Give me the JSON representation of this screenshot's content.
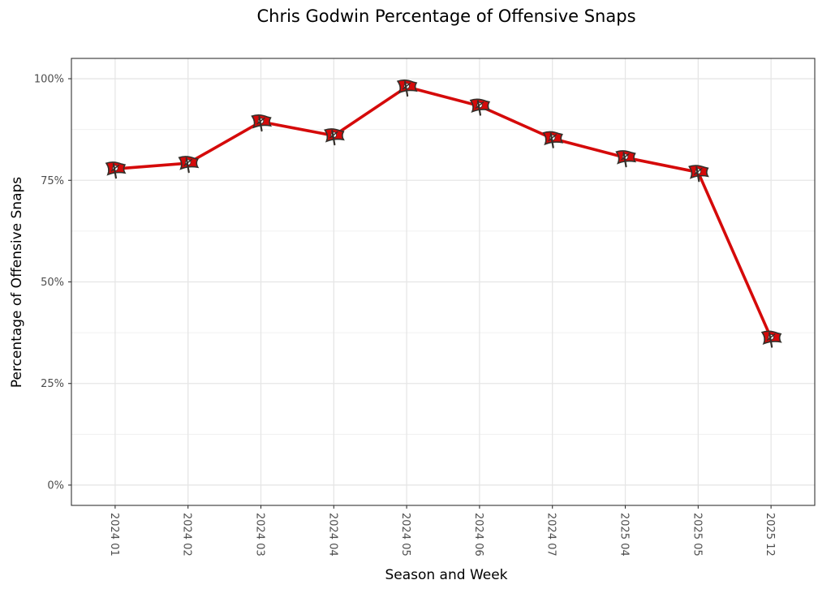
{
  "chart_data": {
    "type": "line",
    "title": "Chris Godwin Percentage of Offensive Snaps",
    "xlabel": "Season and Week",
    "ylabel": "Percentage of Offensive Snaps",
    "categories": [
      "2024 01",
      "2024 02",
      "2024 03",
      "2024 04",
      "2024 05",
      "2024 06",
      "2024 07",
      "2025 04",
      "2025 05",
      "2025 12"
    ],
    "series": [
      {
        "values": [
          0.778,
          0.792,
          0.894,
          0.86,
          0.98,
          0.933,
          0.853,
          0.806,
          0.77,
          0.362
        ]
      }
    ],
    "ylim": [
      -0.05,
      1.05
    ],
    "yticks": [
      0,
      0.25,
      0.5,
      0.75,
      1.0
    ],
    "ytick_labels": [
      "0%",
      "25%",
      "50%",
      "75%",
      "100%"
    ],
    "grid": true,
    "line_color": "#d50a0a",
    "marker": "buccaneers-flag-logo",
    "marker_colors": {
      "flag": "#d50a0a",
      "pole": "#34302b",
      "skull": "#ffffff"
    }
  }
}
